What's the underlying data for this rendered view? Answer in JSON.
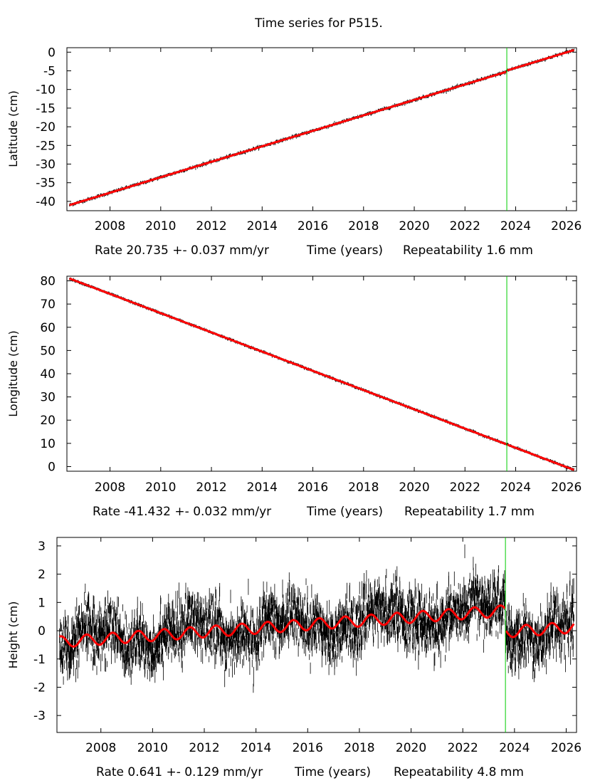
{
  "title": "Time series for P515.",
  "colors": {
    "data": "#000000",
    "model": "#ff0000",
    "break_line": "#00cc00"
  },
  "chart_data": [
    {
      "type": "scatter",
      "id": "lat",
      "ylabel": "Latitude (cm)",
      "xlabel_parts": [
        "Rate 20.735 +- 0.037 mm/yr",
        "Time (years)",
        "Repeatability 1.6 mm"
      ],
      "x_ticks": [
        "2008",
        "2010",
        "2012",
        "2014",
        "2016",
        "2018",
        "2020",
        "2022",
        "2024",
        "2026"
      ],
      "y_ticks": [
        "0",
        "-5",
        "-10",
        "-15",
        "-20",
        "-25",
        "-30",
        "-35",
        "-40"
      ],
      "xlim": [
        2006.3,
        2026.4
      ],
      "ylim": [
        -42.5,
        1.2
      ],
      "break_year": 2023.65,
      "model": {
        "start_value": -41.0,
        "rate_cm_per_yr": 2.0735,
        "t0": 2006.4,
        "t1": 2026.3,
        "step_at_break": 0.3
      },
      "noise_cm": 0.18
    },
    {
      "type": "scatter",
      "id": "lon",
      "ylabel": "Longitude (cm)",
      "xlabel_parts": [
        "Rate -41.432 +- 0.032 mm/yr",
        "Time (years)",
        "Repeatability 1.7 mm"
      ],
      "x_ticks": [
        "2008",
        "2010",
        "2012",
        "2014",
        "2016",
        "2018",
        "2020",
        "2022",
        "2024",
        "2026"
      ],
      "y_ticks": [
        "80",
        "70",
        "60",
        "50",
        "40",
        "30",
        "20",
        "10",
        "0"
      ],
      "xlim": [
        2006.3,
        2026.4
      ],
      "ylim": [
        -2,
        82
      ],
      "break_year": 2023.65,
      "model": {
        "start_value": 81.0,
        "rate_cm_per_yr": -4.1432,
        "t0": 2006.4,
        "t1": 2026.3,
        "step_at_break": 0.0
      },
      "noise_cm": 0.2
    },
    {
      "type": "scatter",
      "id": "hgt",
      "ylabel": "Height (cm)",
      "xlabel_parts": [
        "Rate 0.641 +- 0.129 mm/yr",
        "Time (years)",
        "Repeatability 4.8 mm"
      ],
      "x_ticks": [
        "2008",
        "2010",
        "2012",
        "2014",
        "2016",
        "2018",
        "2020",
        "2022",
        "2024",
        "2026"
      ],
      "y_ticks": [
        "3",
        "2",
        "1",
        "0",
        "-1",
        "-2",
        "-3"
      ],
      "xlim": [
        2006.3,
        2026.4
      ],
      "ylim": [
        -3.6,
        3.3
      ],
      "break_year": 2023.65,
      "model": {
        "start_value": -0.4,
        "rate_cm_per_yr": 0.0641,
        "t0": 2006.4,
        "t1": 2026.3,
        "step_at_break": -0.75,
        "seasonal_amp": 0.2,
        "seasonal_phase_yr": 0.2
      },
      "noise_cm": 0.5
    }
  ]
}
